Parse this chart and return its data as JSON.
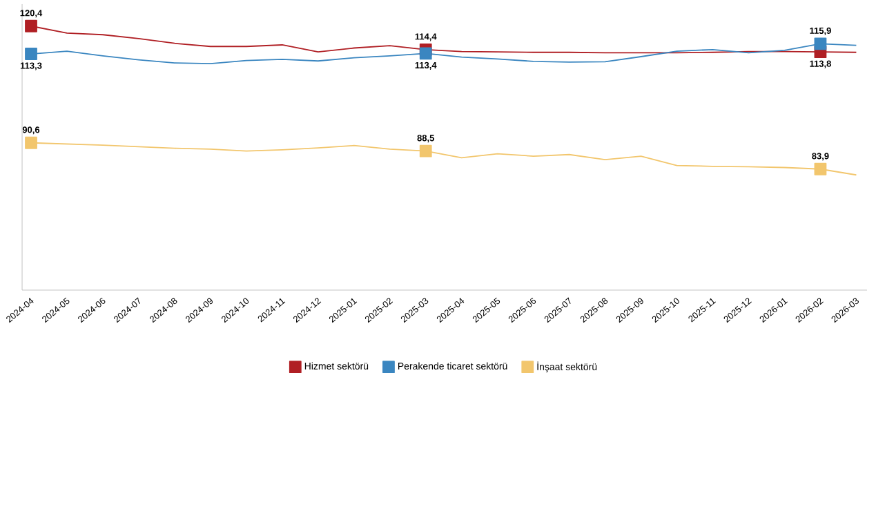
{
  "chart_data": {
    "type": "line",
    "categories": [
      "2024-04",
      "2024-05",
      "2024-06",
      "2024-07",
      "2024-08",
      "2024-09",
      "2024-10",
      "2024-11",
      "2024-12",
      "2025-01",
      "2025-02",
      "2025-03",
      "2025-04",
      "2025-05",
      "2025-06",
      "2025-07",
      "2025-08",
      "2025-09",
      "2025-10",
      "2025-11",
      "2025-12",
      "2026-01",
      "2026-02",
      "2026-03"
    ],
    "series": [
      {
        "name": "Hizmet sektörü",
        "color": "#b01f24",
        "values": [
          120.4,
          118.6,
          118.2,
          117.2,
          116.0,
          115.2,
          115.2,
          115.6,
          113.8,
          114.8,
          115.4,
          114.4,
          113.9,
          113.8,
          113.7,
          113.7,
          113.6,
          113.6,
          113.6,
          113.7,
          113.9,
          113.9,
          113.8,
          113.7
        ],
        "value_labels": [
          "120,4",
          null,
          null,
          null,
          null,
          null,
          null,
          null,
          null,
          null,
          null,
          "114,4",
          null,
          null,
          null,
          null,
          null,
          null,
          null,
          null,
          null,
          null,
          "113,8",
          null
        ]
      },
      {
        "name": "Perakende ticaret sektörü",
        "color": "#3a86c0",
        "values": [
          113.3,
          114.0,
          112.8,
          111.8,
          111.0,
          110.8,
          111.6,
          111.9,
          111.5,
          112.3,
          112.8,
          113.4,
          112.5,
          112.0,
          111.4,
          111.2,
          111.3,
          112.6,
          114.0,
          114.4,
          113.6,
          114.2,
          115.9,
          115.5
        ],
        "value_labels": [
          "113,3",
          null,
          null,
          null,
          null,
          null,
          null,
          null,
          null,
          null,
          null,
          "113,4",
          null,
          null,
          null,
          null,
          null,
          null,
          null,
          null,
          null,
          null,
          "115,9",
          null
        ]
      },
      {
        "name": "İnşaat sektörü",
        "color": "#f2c66d",
        "values": [
          90.6,
          90.3,
          90.0,
          89.6,
          89.2,
          89.0,
          88.5,
          88.8,
          89.3,
          89.9,
          89.0,
          88.5,
          86.8,
          87.8,
          87.2,
          87.6,
          86.3,
          87.2,
          84.8,
          84.6,
          84.5,
          84.3,
          83.9,
          82.4
        ],
        "value_labels": [
          "90,6",
          null,
          null,
          null,
          null,
          null,
          null,
          null,
          null,
          null,
          null,
          "88,5",
          null,
          null,
          null,
          null,
          null,
          null,
          null,
          null,
          null,
          null,
          "83,9",
          null
        ]
      }
    ],
    "ylim": [
      53,
      126
    ],
    "legend": "bottom",
    "tick_labels": "x"
  }
}
